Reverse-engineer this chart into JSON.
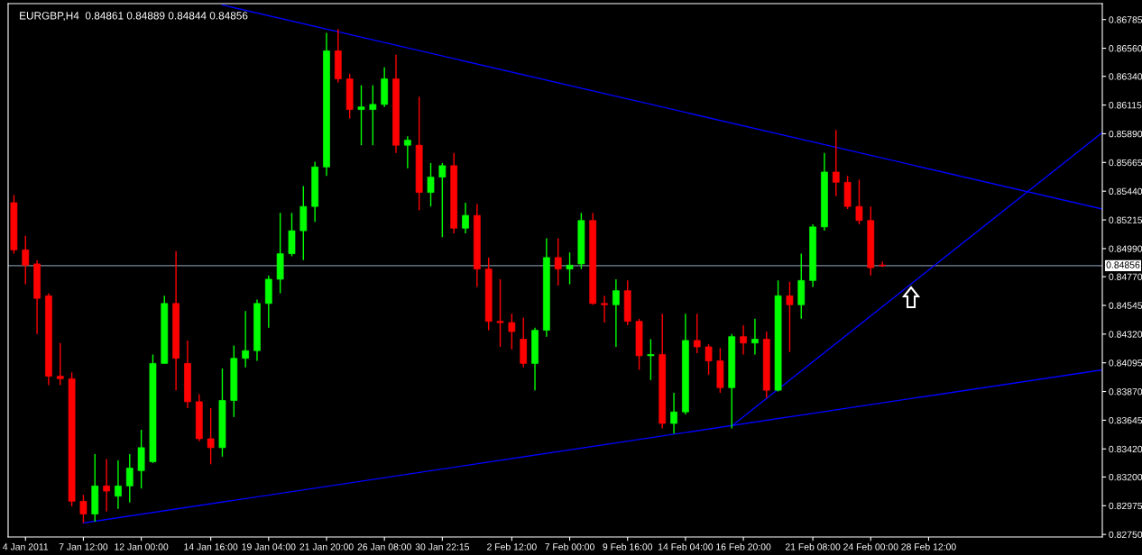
{
  "chart_data": {
    "type": "candlestick",
    "title": "EURGBP,H4  0.84861 0.84889 0.84844 0.84856",
    "categories": [
      null,
      "4 Jan 2011",
      null,
      null,
      null,
      null,
      "7 Jan 12:00",
      null,
      null,
      null,
      null,
      "12 Jan 00:00",
      null,
      null,
      null,
      null,
      null,
      "14 Jan 16:00",
      null,
      null,
      null,
      null,
      "19 Jan 04:00",
      null,
      null,
      null,
      null,
      "21 Jan 20:00",
      null,
      null,
      null,
      null,
      "26 Jan 08:00",
      null,
      null,
      null,
      null,
      "30 Jan 22:15",
      null,
      null,
      null,
      null,
      null,
      "2 Feb 12:00",
      null,
      null,
      null,
      null,
      "7 Feb 00:00",
      null,
      null,
      null,
      null,
      "9 Feb 16:00",
      null,
      null,
      null,
      null,
      "14 Feb 04:00",
      null,
      null,
      null,
      null,
      "16 Feb 20:00",
      null,
      null,
      null,
      null,
      null,
      "21 Feb 08:00",
      null,
      null,
      null,
      null,
      "24 Feb 00:00",
      null,
      null,
      null,
      null,
      "28 Feb 12:00",
      null,
      null,
      null,
      null,
      null,
      null,
      null,
      null,
      null,
      null,
      null,
      null,
      null,
      null,
      null
    ],
    "ohlc": [
      [
        0.8535,
        0.8541,
        0.8495,
        0.8498
      ],
      [
        0.8498,
        0.8509,
        0.8471,
        0.8486
      ],
      [
        0.8487,
        0.849,
        0.8432,
        0.846
      ],
      [
        0.8462,
        0.8464,
        0.8392,
        0.8399
      ],
      [
        0.8399,
        0.8425,
        0.8392,
        0.8397
      ],
      [
        0.8397,
        0.8402,
        0.8297,
        0.8301
      ],
      [
        0.8301,
        0.8306,
        0.8284,
        0.8291
      ],
      [
        0.8291,
        0.8338,
        0.8285,
        0.8313
      ],
      [
        0.8313,
        0.8334,
        0.8293,
        0.8309
      ],
      [
        0.8305,
        0.8333,
        0.8295,
        0.8313
      ],
      [
        0.8313,
        0.8338,
        0.83,
        0.8327
      ],
      [
        0.8325,
        0.8357,
        0.8311,
        0.8343
      ],
      [
        0.8332,
        0.8416,
        0.8331,
        0.8409
      ],
      [
        0.8409,
        0.8462,
        0.8409,
        0.8456
      ],
      [
        0.8456,
        0.8497,
        0.8388,
        0.8413
      ],
      [
        0.8409,
        0.8427,
        0.8374,
        0.8379
      ],
      [
        0.8379,
        0.8385,
        0.8348,
        0.835
      ],
      [
        0.835,
        0.8374,
        0.833,
        0.8343
      ],
      [
        0.8343,
        0.8405,
        0.8336,
        0.838
      ],
      [
        0.838,
        0.8423,
        0.8367,
        0.8413
      ],
      [
        0.8413,
        0.845,
        0.8406,
        0.8419
      ],
      [
        0.8419,
        0.8459,
        0.8411,
        0.8456
      ],
      [
        0.8456,
        0.8478,
        0.8437,
        0.8475
      ],
      [
        0.8475,
        0.8527,
        0.8464,
        0.8495
      ],
      [
        0.8495,
        0.8527,
        0.8493,
        0.8513
      ],
      [
        0.8513,
        0.8548,
        0.849,
        0.8532
      ],
      [
        0.8532,
        0.8567,
        0.852,
        0.8563
      ],
      [
        0.8563,
        0.8668,
        0.8556,
        0.8654
      ],
      [
        0.8654,
        0.8671,
        0.8629,
        0.8632
      ],
      [
        0.8632,
        0.8636,
        0.8601,
        0.8608
      ],
      [
        0.8608,
        0.8627,
        0.858,
        0.861
      ],
      [
        0.8608,
        0.8627,
        0.858,
        0.8612
      ],
      [
        0.8612,
        0.8641,
        0.861,
        0.8632
      ],
      [
        0.8632,
        0.8651,
        0.8574,
        0.858
      ],
      [
        0.858,
        0.8587,
        0.8562,
        0.8584
      ],
      [
        0.858,
        0.8618,
        0.8529,
        0.8543
      ],
      [
        0.8543,
        0.8566,
        0.8532,
        0.8555
      ],
      [
        0.8555,
        0.8566,
        0.8508,
        0.8564
      ],
      [
        0.8564,
        0.8574,
        0.8511,
        0.8515
      ],
      [
        0.8515,
        0.8535,
        0.8511,
        0.8525
      ],
      [
        0.8525,
        0.8534,
        0.8469,
        0.8483
      ],
      [
        0.8483,
        0.8492,
        0.8435,
        0.8442
      ],
      [
        0.8442,
        0.8475,
        0.8422,
        0.8441
      ],
      [
        0.8441,
        0.8448,
        0.842,
        0.8434
      ],
      [
        0.8428,
        0.8445,
        0.8406,
        0.8409
      ],
      [
        0.8409,
        0.8437,
        0.8388,
        0.8435
      ],
      [
        0.8435,
        0.8507,
        0.843,
        0.8492
      ],
      [
        0.8492,
        0.8507,
        0.847,
        0.8483
      ],
      [
        0.8483,
        0.8496,
        0.8471,
        0.8486
      ],
      [
        0.8487,
        0.8527,
        0.8483,
        0.8521
      ],
      [
        0.8521,
        0.8527,
        0.8455,
        0.8456
      ],
      [
        0.8456,
        0.8462,
        0.8441,
        0.8455
      ],
      [
        0.8455,
        0.8475,
        0.8422,
        0.8466
      ],
      [
        0.8466,
        0.8474,
        0.8439,
        0.8442
      ],
      [
        0.8442,
        0.8444,
        0.8404,
        0.8415
      ],
      [
        0.8415,
        0.8428,
        0.8396,
        0.8416
      ],
      [
        0.8416,
        0.8448,
        0.8358,
        0.8362
      ],
      [
        0.8362,
        0.8386,
        0.8354,
        0.8371
      ],
      [
        0.8371,
        0.8448,
        0.8369,
        0.8427
      ],
      [
        0.8427,
        0.8448,
        0.8417,
        0.8422
      ],
      [
        0.8422,
        0.8424,
        0.84,
        0.8411
      ],
      [
        0.8411,
        0.8421,
        0.8386,
        0.839
      ],
      [
        0.839,
        0.8432,
        0.8358,
        0.843
      ],
      [
        0.843,
        0.8439,
        0.8416,
        0.8425
      ],
      [
        0.8425,
        0.8444,
        0.8416,
        0.8428
      ],
      [
        0.8428,
        0.8434,
        0.8382,
        0.8388
      ],
      [
        0.8388,
        0.8474,
        0.8387,
        0.8462
      ],
      [
        0.8462,
        0.8473,
        0.8418,
        0.8455
      ],
      [
        0.8455,
        0.8495,
        0.8444,
        0.8474
      ],
      [
        0.8474,
        0.8518,
        0.8469,
        0.8516
      ],
      [
        0.8516,
        0.8574,
        0.8513,
        0.8559
      ],
      [
        0.8559,
        0.8592,
        0.854,
        0.8551
      ],
      [
        0.8551,
        0.8556,
        0.853,
        0.8532
      ],
      [
        0.8532,
        0.8553,
        0.8518,
        0.8521
      ],
      [
        0.8521,
        0.8532,
        0.8478,
        0.8484
      ],
      [
        0.84861,
        0.84889,
        0.84844,
        0.84856
      ],
      null,
      null,
      null,
      null,
      null,
      null,
      null,
      null,
      null,
      null,
      null,
      null,
      null,
      null,
      null,
      null,
      null,
      null,
      null
    ],
    "colors": [
      "#ff0000",
      "#ff0000",
      "#ff0000",
      "#ff0000",
      "#ff0000",
      "#ff0000",
      "#ff0000",
      "#00ff00",
      "#ff0000",
      "#00ff00",
      "#00ff00",
      "#00ff00",
      "#00ff00",
      "#00ff00",
      "#ff0000",
      "#ff0000",
      "#ff0000",
      "#ff0000",
      "#00ff00",
      "#00ff00",
      "#00ff00",
      "#00ff00",
      "#00ff00",
      "#00ff00",
      "#00ff00",
      "#00ff00",
      "#00ff00",
      "#00ff00",
      "#ff0000",
      "#ff0000",
      "#00ff00",
      "#00ff00",
      "#00ff00",
      "#ff0000",
      "#00ff00",
      "#ff0000",
      "#00ff00",
      "#00ff00",
      "#ff0000",
      "#00ff00",
      "#ff0000",
      "#ff0000",
      "#ff0000",
      "#ff0000",
      "#ff0000",
      "#00ff00",
      "#00ff00",
      "#ff0000",
      "#00ff00",
      "#00ff00",
      "#ff0000",
      "#ff0000",
      "#00ff00",
      "#ff0000",
      "#ff0000",
      "#00ff00",
      "#ff0000",
      "#00ff00",
      "#00ff00",
      "#ff0000",
      "#ff0000",
      "#ff0000",
      "#00ff00",
      "#ff0000",
      "#00ff00",
      "#ff0000",
      "#00ff00",
      "#ff0000",
      "#00ff00",
      "#00ff00",
      "#00ff00",
      "#ff0000",
      "#ff0000",
      "#ff0000",
      "#ff0000",
      "#ff0000",
      null,
      null,
      null,
      null,
      null,
      null,
      null,
      null,
      null,
      null,
      null,
      null,
      null,
      null,
      null,
      null,
      null,
      null,
      null
    ],
    "series": [
      {
        "type": "line",
        "color": "#0000ff",
        "values": [
          null,
          null,
          null,
          null,
          null,
          null,
          null,
          null,
          null,
          null,
          null,
          null,
          null,
          null,
          null,
          null,
          null,
          null,
          0.869,
          null,
          null,
          null,
          null,
          null,
          null,
          null,
          null,
          null,
          null,
          null,
          null,
          null,
          null,
          null,
          null,
          null,
          null,
          null,
          null,
          null,
          null,
          null,
          null,
          null,
          null,
          null,
          null,
          null,
          null,
          null,
          null,
          null,
          null,
          null,
          null,
          null,
          null,
          null,
          null,
          null,
          null,
          null,
          null,
          null,
          null,
          null,
          null,
          null,
          null,
          null,
          null,
          null,
          null,
          null,
          null,
          null,
          null,
          null,
          null,
          null,
          null,
          null,
          null,
          null,
          null,
          null,
          null,
          null,
          null,
          null,
          null,
          null,
          null,
          null,
          0.853
        ]
      },
      {
        "type": "line",
        "color": "#0000ff",
        "values": [
          null,
          null,
          null,
          null,
          null,
          null,
          0.8284,
          null,
          null,
          null,
          null,
          null,
          null,
          null,
          null,
          null,
          null,
          null,
          null,
          null,
          null,
          null,
          null,
          null,
          null,
          null,
          null,
          null,
          null,
          null,
          null,
          null,
          null,
          null,
          null,
          null,
          null,
          null,
          null,
          null,
          null,
          null,
          null,
          null,
          null,
          null,
          null,
          null,
          null,
          null,
          null,
          null,
          null,
          null,
          null,
          null,
          null,
          null,
          null,
          null,
          null,
          null,
          null,
          null,
          null,
          null,
          null,
          null,
          null,
          null,
          null,
          null,
          null,
          null,
          null,
          null,
          null,
          null,
          null,
          null,
          null,
          null,
          null,
          null,
          null,
          null,
          null,
          null,
          null,
          null,
          null,
          null,
          null,
          null,
          0.8404
        ]
      },
      {
        "type": "line",
        "color": "#0000ff",
        "values": [
          null,
          null,
          null,
          null,
          null,
          null,
          null,
          null,
          null,
          null,
          null,
          null,
          null,
          null,
          null,
          null,
          null,
          null,
          null,
          null,
          null,
          null,
          null,
          null,
          null,
          null,
          null,
          null,
          null,
          null,
          null,
          null,
          null,
          null,
          null,
          null,
          null,
          null,
          null,
          null,
          null,
          null,
          null,
          null,
          null,
          null,
          null,
          null,
          null,
          null,
          null,
          null,
          null,
          null,
          null,
          null,
          null,
          null,
          null,
          null,
          null,
          null,
          0.836,
          null,
          null,
          null,
          null,
          null,
          null,
          null,
          null,
          null,
          null,
          null,
          null,
          null,
          null,
          null,
          null,
          null,
          null,
          null,
          null,
          null,
          null,
          null,
          null,
          null,
          null,
          null,
          null,
          null,
          null,
          null,
          0.859
        ]
      }
    ],
    "ref_lines": [
      {
        "axis": "y",
        "value": 0.84856,
        "label": "0.84856",
        "color": "#778899"
      }
    ],
    "ylim": [
      0.8273,
      0.8691
    ],
    "yticks": [
      {
        "value": 0.8275,
        "label": "0.82750"
      },
      {
        "value": 0.82975,
        "label": "0.82975"
      },
      {
        "value": 0.832,
        "label": "0.83200"
      },
      {
        "value": 0.8342,
        "label": "0.83420"
      },
      {
        "value": 0.83645,
        "label": "0.83645"
      },
      {
        "value": 0.8387,
        "label": "0.83870"
      },
      {
        "value": 0.84095,
        "label": "0.84095"
      },
      {
        "value": 0.8432,
        "label": "0.84320"
      },
      {
        "value": 0.84545,
        "label": "0.84545"
      },
      {
        "value": 0.8477,
        "label": "0.84770"
      },
      {
        "value": 0.8499,
        "label": "0.84990"
      },
      {
        "value": 0.85215,
        "label": "0.85215"
      },
      {
        "value": 0.8544,
        "label": "0.85440"
      },
      {
        "value": 0.85665,
        "label": "0.85665"
      },
      {
        "value": 0.8589,
        "label": "0.85890"
      },
      {
        "value": 0.86115,
        "label": "0.86115"
      },
      {
        "value": 0.8634,
        "label": "0.86340"
      },
      {
        "value": 0.8656,
        "label": "0.86560"
      },
      {
        "value": 0.86785,
        "label": "0.86785"
      }
    ],
    "grid": false
  }
}
